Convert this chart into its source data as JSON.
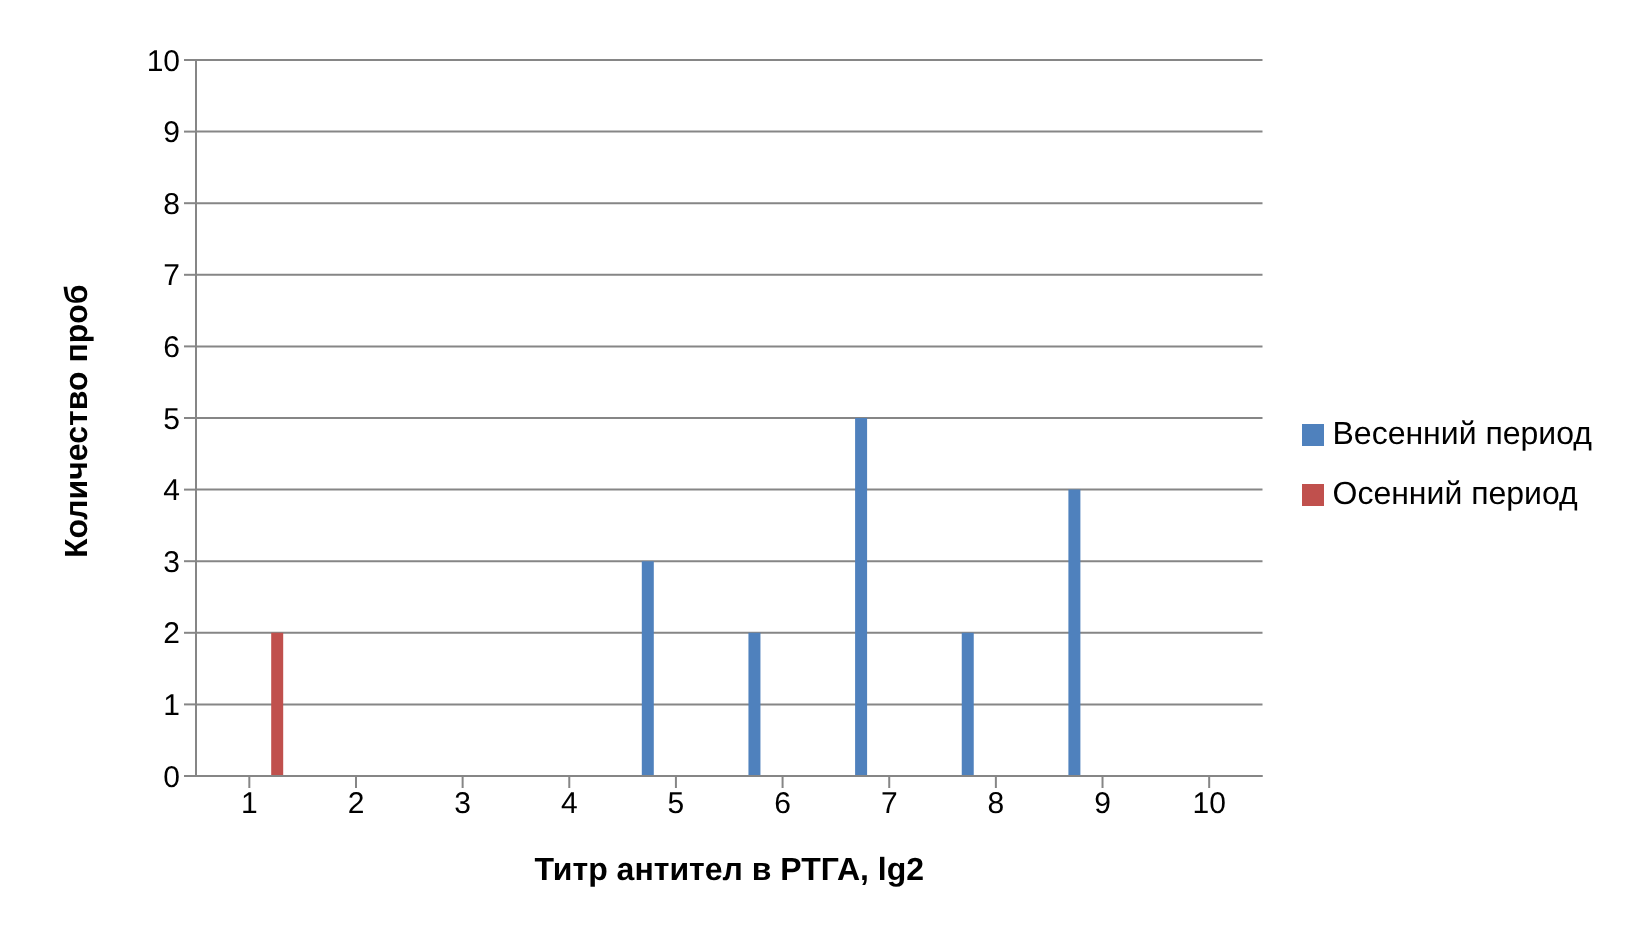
{
  "chart_data": {
    "type": "bar",
    "xlabel": "Титр антител в РТГА, lg2",
    "ylabel": "Количество проб",
    "categories": [
      "1",
      "2",
      "3",
      "4",
      "5",
      "6",
      "7",
      "8",
      "9",
      "10"
    ],
    "series": [
      {
        "name": "Весенний период",
        "color": "#4f81bd",
        "values": [
          0,
          0,
          0,
          0,
          3,
          2,
          5,
          2,
          4,
          0
        ]
      },
      {
        "name": "Осенний период",
        "color": "#c0504d",
        "values": [
          2,
          0,
          0,
          0,
          0,
          0,
          0,
          0,
          0,
          0
        ]
      }
    ],
    "ylim": [
      0,
      10
    ],
    "yticks": [
      0,
      1,
      2,
      3,
      4,
      5,
      6,
      7,
      8,
      9,
      10
    ],
    "grid": "y",
    "legend": "right"
  }
}
